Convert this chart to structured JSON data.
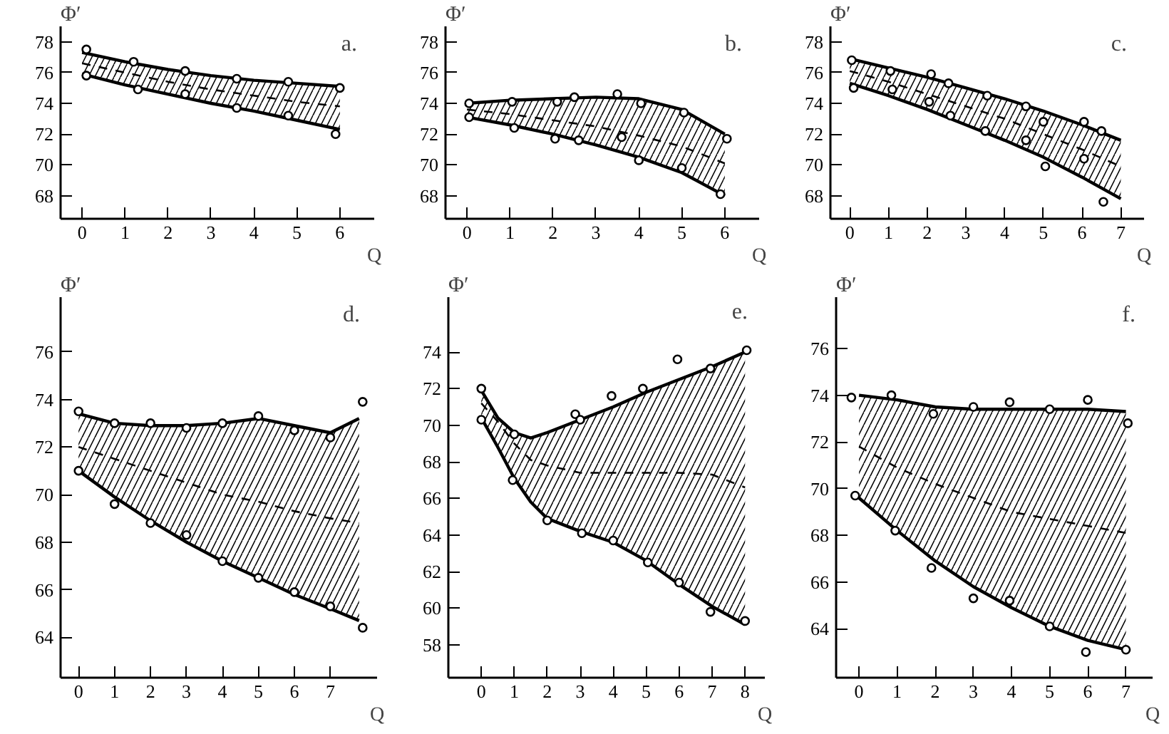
{
  "chart_data": [
    {
      "type": "line",
      "title": "a.",
      "xlabel": "Q",
      "ylabel": "Φ′",
      "xlim": [
        -0.5,
        6.8
      ],
      "ylim": [
        66.5,
        79
      ],
      "xticks": [
        0,
        1,
        2,
        3,
        4,
        5,
        6
      ],
      "yticks": [
        68,
        70,
        72,
        74,
        76,
        78
      ],
      "series": [
        {
          "color": "#000000",
          "line_style": "dashed",
          "x": [
            0,
            1,
            2,
            3,
            4,
            5,
            6
          ],
          "values": [
            76.6,
            76.0,
            75.4,
            74.9,
            74.5,
            74.1,
            73.8
          ],
          "lower": [
            75.9,
            75.2,
            74.6,
            74.0,
            73.5,
            72.9,
            72.3
          ],
          "upper": [
            77.3,
            76.7,
            76.2,
            75.8,
            75.5,
            75.3,
            75.1
          ]
        },
        {
          "color": "#000000",
          "line_style": "solid",
          "x": [
            0,
            1,
            2,
            3,
            4,
            5,
            6
          ],
          "values": [
            77.3,
            76.7,
            76.2,
            75.8,
            75.5,
            75.3,
            75.1
          ]
        },
        {
          "color": "#000000",
          "line_style": "solid",
          "x": [
            0,
            1,
            2,
            3,
            4,
            5,
            6
          ],
          "values": [
            75.9,
            75.2,
            74.6,
            74.0,
            73.5,
            72.9,
            72.3
          ]
        },
        {
          "type": "scatter",
          "color": "#000000",
          "marker": "circle",
          "x": [
            0.1,
            1.2,
            2.4,
            3.6,
            4.8,
            6.0
          ],
          "values": [
            77.5,
            76.7,
            76.1,
            75.6,
            75.4,
            75.0
          ]
        },
        {
          "type": "scatter",
          "color": "#000000",
          "marker": "circle",
          "x": [
            0.1,
            1.3,
            2.4,
            3.6,
            4.8,
            5.9
          ],
          "values": [
            75.8,
            74.9,
            74.6,
            73.7,
            73.2,
            72.0
          ]
        }
      ]
    },
    {
      "type": "line",
      "title": "b.",
      "xlabel": "Q",
      "ylabel": "Φ′",
      "xlim": [
        -0.5,
        6.8
      ],
      "ylim": [
        66.5,
        79
      ],
      "xticks": [
        0,
        1,
        2,
        3,
        4,
        5,
        6
      ],
      "yticks": [
        68,
        70,
        72,
        74,
        76,
        78
      ],
      "series": [
        {
          "color": "#000000",
          "line_style": "dashed",
          "x": [
            0,
            1,
            2,
            3,
            4,
            5,
            6
          ],
          "values": [
            73.6,
            73.3,
            72.9,
            72.5,
            71.9,
            71.2,
            70.1
          ],
          "lower": [
            73.1,
            72.6,
            72.0,
            71.3,
            70.5,
            69.5,
            68.0
          ],
          "upper": [
            74.0,
            74.2,
            74.3,
            74.4,
            74.3,
            73.6,
            72.0
          ]
        },
        {
          "color": "#000000",
          "line_style": "solid",
          "x": [
            0,
            1,
            2,
            3,
            4,
            5,
            6
          ],
          "values": [
            74.0,
            74.2,
            74.3,
            74.4,
            74.3,
            73.6,
            72.0
          ]
        },
        {
          "color": "#000000",
          "line_style": "solid",
          "x": [
            0,
            1,
            2,
            3,
            4,
            5,
            6
          ],
          "values": [
            73.1,
            72.6,
            72.0,
            71.3,
            70.5,
            69.5,
            68.0
          ]
        },
        {
          "type": "scatter",
          "color": "#000000",
          "marker": "circle",
          "x": [
            0.05,
            1.05,
            2.1,
            2.5,
            3.5,
            4.05,
            5.05,
            6.05
          ],
          "values": [
            74.0,
            74.1,
            74.1,
            74.4,
            74.6,
            74.0,
            73.4,
            71.7
          ]
        },
        {
          "type": "scatter",
          "color": "#000000",
          "marker": "circle",
          "x": [
            0.05,
            1.1,
            2.05,
            2.6,
            3.6,
            4.0,
            5.0,
            5.9
          ],
          "values": [
            73.1,
            72.4,
            71.7,
            71.6,
            71.8,
            70.3,
            69.8,
            68.1
          ]
        }
      ]
    },
    {
      "type": "line",
      "title": "c.",
      "xlabel": "Q",
      "ylabel": "Φ′",
      "xlim": [
        -0.5,
        7.6
      ],
      "ylim": [
        66.5,
        79
      ],
      "xticks": [
        0,
        1,
        2,
        3,
        4,
        5,
        6,
        7
      ],
      "yticks": [
        68,
        70,
        72,
        74,
        76,
        78
      ],
      "series": [
        {
          "color": "#000000",
          "line_style": "dashed",
          "x": [
            0,
            1,
            2,
            3,
            4,
            5,
            6,
            7
          ],
          "values": [
            76.1,
            75.4,
            74.6,
            73.8,
            73.0,
            72.0,
            71.0,
            69.9
          ],
          "lower": [
            75.3,
            74.5,
            73.6,
            72.6,
            71.6,
            70.5,
            69.2,
            67.8
          ],
          "upper": [
            76.9,
            76.3,
            75.7,
            75.0,
            74.3,
            73.5,
            72.6,
            71.6
          ]
        },
        {
          "color": "#000000",
          "line_style": "solid",
          "x": [
            0,
            1,
            2,
            3,
            4,
            5,
            6,
            7
          ],
          "values": [
            76.9,
            76.3,
            75.7,
            75.0,
            74.3,
            73.5,
            72.6,
            71.6
          ]
        },
        {
          "color": "#000000",
          "line_style": "solid",
          "x": [
            0,
            1,
            2,
            3,
            4,
            5,
            6,
            7
          ],
          "values": [
            75.3,
            74.5,
            73.6,
            72.6,
            71.6,
            70.5,
            69.2,
            67.8
          ]
        },
        {
          "type": "scatter",
          "color": "#000000",
          "marker": "circle",
          "x": [
            0.05,
            1.05,
            2.1,
            2.55,
            3.55,
            4.55,
            5.0,
            6.05,
            6.5
          ],
          "values": [
            76.8,
            76.1,
            75.9,
            75.3,
            74.5,
            73.8,
            72.8,
            72.8,
            72.2
          ]
        },
        {
          "type": "scatter",
          "color": "#000000",
          "marker": "circle",
          "x": [
            0.1,
            1.1,
            2.05,
            2.6,
            3.5,
            4.55,
            5.05,
            6.05,
            6.55
          ],
          "values": [
            75.0,
            74.9,
            74.1,
            73.2,
            72.2,
            71.6,
            69.9,
            70.4,
            67.6
          ]
        }
      ]
    },
    {
      "type": "line",
      "title": "d.",
      "xlabel": "Q",
      "ylabel": "Φ′",
      "xlim": [
        -0.5,
        8.3
      ],
      "ylim": [
        62.3,
        78.3
      ],
      "xticks": [
        0,
        1,
        2,
        3,
        4,
        5,
        6,
        7
      ],
      "yticks": [
        64,
        66,
        68,
        70,
        72,
        74,
        76
      ],
      "series": [
        {
          "color": "#000000",
          "line_style": "dashed",
          "x": [
            0,
            1,
            2,
            3,
            4,
            5,
            6,
            7,
            7.8
          ],
          "values": [
            72.0,
            71.5,
            71.0,
            70.5,
            70.0,
            69.7,
            69.3,
            69.0,
            68.8
          ],
          "lower": [
            71.0,
            69.9,
            68.9,
            68.0,
            67.2,
            66.5,
            65.8,
            65.2,
            64.7
          ],
          "upper": [
            73.4,
            73.0,
            72.9,
            72.9,
            73.0,
            73.2,
            72.9,
            72.6,
            73.2
          ]
        },
        {
          "color": "#000000",
          "line_style": "solid",
          "x": [
            0,
            1,
            2,
            3,
            4,
            5,
            6,
            7,
            7.8
          ],
          "values": [
            73.4,
            73.0,
            72.9,
            72.9,
            73.0,
            73.2,
            72.9,
            72.6,
            73.2
          ]
        },
        {
          "color": "#000000",
          "line_style": "solid",
          "x": [
            0,
            1,
            2,
            3,
            4,
            5,
            6,
            7,
            7.8
          ],
          "values": [
            71.0,
            69.9,
            68.9,
            68.0,
            67.2,
            66.5,
            65.8,
            65.2,
            64.7
          ]
        },
        {
          "type": "scatter",
          "color": "#000000",
          "marker": "circle",
          "x": [
            0,
            1,
            2,
            3,
            4,
            5,
            6,
            7,
            7.9
          ],
          "values": [
            73.5,
            73.0,
            73.0,
            72.8,
            73.0,
            73.3,
            72.7,
            72.4,
            73.9
          ]
        },
        {
          "type": "scatter",
          "color": "#000000",
          "marker": "circle",
          "x": [
            0,
            1,
            2,
            3,
            4,
            5,
            6,
            7,
            7.9
          ],
          "values": [
            71.0,
            69.6,
            68.8,
            68.3,
            67.2,
            66.5,
            65.9,
            65.3,
            64.4
          ]
        }
      ]
    },
    {
      "type": "line",
      "title": "e.",
      "xlabel": "Q",
      "ylabel": "Φ′",
      "xlim": [
        -1.0,
        8.6
      ],
      "ylim": [
        56.2,
        77
      ],
      "xticks": [
        0,
        1,
        2,
        3,
        4,
        5,
        6,
        7,
        8
      ],
      "yticks": [
        58,
        60,
        62,
        64,
        66,
        68,
        70,
        72,
        74
      ],
      "series": [
        {
          "color": "#000000",
          "line_style": "dashed",
          "x": [
            0,
            0.5,
            1,
            1.5,
            2,
            3,
            4,
            5,
            6,
            7,
            8
          ],
          "values": [
            71.2,
            70.2,
            69.0,
            68.1,
            67.8,
            67.4,
            67.4,
            67.4,
            67.4,
            67.3,
            66.6
          ],
          "lower": [
            70.4,
            68.8,
            67.1,
            65.8,
            64.9,
            64.2,
            63.6,
            62.6,
            61.3,
            60.1,
            59.1
          ],
          "upper": [
            71.9,
            70.4,
            69.6,
            69.3,
            69.6,
            70.3,
            71.0,
            71.8,
            72.5,
            73.2,
            74.0
          ]
        },
        {
          "color": "#000000",
          "line_style": "solid",
          "x": [
            0,
            0.5,
            1,
            1.5,
            2,
            3,
            4,
            5,
            6,
            7,
            8
          ],
          "values": [
            71.9,
            70.4,
            69.6,
            69.3,
            69.6,
            70.3,
            71.0,
            71.8,
            72.5,
            73.2,
            74.0
          ]
        },
        {
          "color": "#000000",
          "line_style": "solid",
          "x": [
            0,
            0.5,
            1,
            1.5,
            2,
            3,
            4,
            5,
            6,
            7,
            8
          ],
          "values": [
            70.4,
            68.8,
            67.1,
            65.8,
            64.9,
            64.2,
            63.6,
            62.6,
            61.3,
            60.1,
            59.1
          ]
        },
        {
          "type": "scatter",
          "color": "#000000",
          "marker": "circle",
          "x": [
            0,
            1,
            2.85,
            3,
            3.95,
            4.9,
            5.95,
            6.95,
            8.05
          ],
          "values": [
            72.0,
            69.5,
            70.6,
            70.3,
            71.6,
            72.0,
            73.6,
            73.1,
            74.1
          ]
        },
        {
          "type": "scatter",
          "color": "#000000",
          "marker": "circle",
          "x": [
            0,
            0.95,
            2,
            3.05,
            4,
            5.05,
            6,
            6.95,
            8
          ],
          "values": [
            70.3,
            67.0,
            64.8,
            64.1,
            63.7,
            62.5,
            61.4,
            59.8,
            59.3
          ]
        }
      ]
    },
    {
      "type": "line",
      "title": "f.",
      "xlabel": "Q",
      "ylabel": "Φ′",
      "xlim": [
        -0.6,
        7.7
      ],
      "ylim": [
        61.9,
        78.2
      ],
      "xticks": [
        0,
        1,
        2,
        3,
        4,
        5,
        6,
        7
      ],
      "yticks": [
        64,
        66,
        68,
        70,
        72,
        74,
        76
      ],
      "series": [
        {
          "color": "#000000",
          "line_style": "dashed",
          "x": [
            0,
            1,
            2,
            3,
            4,
            5,
            6,
            7
          ],
          "values": [
            71.8,
            70.9,
            70.2,
            69.6,
            69.0,
            68.7,
            68.4,
            68.1
          ],
          "lower": [
            69.6,
            68.2,
            66.9,
            65.8,
            64.9,
            64.1,
            63.5,
            63.1
          ],
          "upper": [
            74.0,
            73.8,
            73.5,
            73.4,
            73.4,
            73.4,
            73.4,
            73.3
          ]
        },
        {
          "color": "#000000",
          "line_style": "solid",
          "x": [
            0,
            1,
            2,
            3,
            4,
            5,
            6,
            7
          ],
          "values": [
            74.0,
            73.8,
            73.5,
            73.4,
            73.4,
            73.4,
            73.4,
            73.3
          ]
        },
        {
          "color": "#000000",
          "line_style": "solid",
          "x": [
            0,
            1,
            2,
            3,
            4,
            5,
            6,
            7
          ],
          "values": [
            69.6,
            68.2,
            66.9,
            65.8,
            64.9,
            64.1,
            63.5,
            63.1
          ]
        },
        {
          "type": "scatter",
          "color": "#000000",
          "marker": "circle",
          "x": [
            -0.2,
            0.85,
            1.95,
            3,
            3.95,
            5,
            6,
            7.05
          ],
          "values": [
            73.9,
            74.0,
            73.2,
            73.5,
            73.7,
            73.4,
            73.8,
            72.8
          ]
        },
        {
          "type": "scatter",
          "color": "#000000",
          "marker": "circle",
          "x": [
            -0.1,
            0.95,
            1.9,
            3,
            3.95,
            5,
            5.95,
            7
          ],
          "values": [
            69.7,
            68.2,
            66.6,
            65.3,
            65.2,
            64.1,
            63.0,
            63.1
          ]
        }
      ]
    }
  ]
}
